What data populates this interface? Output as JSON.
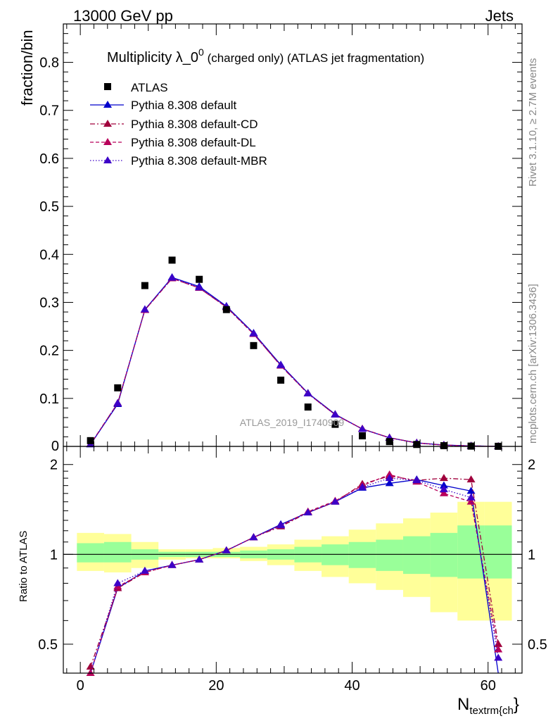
{
  "header": {
    "left": "13000 GeV pp",
    "right": "Jets"
  },
  "side_text": {
    "rivet": "Rivet 3.1.10, ≥ 2.7M events",
    "mcplots": "mcplots.cern.ch [arXiv:1306.3436]"
  },
  "watermark": "ATLAS_2019_I1740909",
  "colors": {
    "data": "#000000",
    "default": "#0000cc",
    "cd": "#a0003c",
    "dl": "#b8005a",
    "mbr": "#3d00c8",
    "band_yellow": "#ffff99",
    "band_green": "#99ff99"
  },
  "chart_data": [
    {
      "type": "scatter",
      "title": "Multiplicity λ_0^0 (charged only) (ATLAS jet fragmentation)",
      "title_parts": {
        "main": "Multiplicity λ_0",
        "sup": "0",
        "tail": " (charged only) (ATLAS jet fragmentation)"
      },
      "xlabel": "N_textrm{ch}",
      "xlabel_parts": {
        "main": "N",
        "sub": "textrm{ch",
        "tail": "}"
      },
      "ylabel": "fraction/bin",
      "xlim": [
        -2.5,
        65
      ],
      "ylim": [
        0,
        0.88
      ],
      "x_ticks": [
        0,
        20,
        40,
        60
      ],
      "y_ticks": [
        0.1,
        0.2,
        0.3,
        0.4,
        0.5,
        0.6,
        0.7,
        0.8
      ],
      "y_tick_labels": [
        "0.1",
        "0.2",
        "0.3",
        "0.4",
        "0.5",
        "0.6",
        "0.7",
        "0.8"
      ],
      "y_zero_label": "0",
      "legend_position": "top-left",
      "x": [
        1.5,
        5.5,
        9.5,
        13.5,
        17.5,
        21.5,
        25.5,
        29.5,
        33.5,
        37.5,
        41.5,
        45.5,
        49.5,
        53.5,
        57.5,
        61.5
      ],
      "series": [
        {
          "name": "ATLAS",
          "marker": "square",
          "values": [
            0.012,
            0.122,
            0.335,
            0.388,
            0.348,
            0.285,
            0.21,
            0.138,
            0.082,
            0.046,
            0.022,
            0.01,
            0.004,
            0.0015,
            0.0006,
            0.0002
          ]
        },
        {
          "name": "Pythia 8.308 default",
          "style": "solid",
          "values": [
            0.004,
            0.088,
            0.285,
            0.352,
            0.333,
            0.292,
            0.236,
            0.17,
            0.111,
            0.067,
            0.036,
            0.018,
            0.0075,
            0.0029,
            0.0011,
            7e-05
          ]
        },
        {
          "name": "Pythia 8.308 default-CD",
          "style": "dashdot",
          "values": [
            0.0046,
            0.09,
            0.284,
            0.35,
            0.33,
            0.29,
            0.234,
            0.168,
            0.11,
            0.066,
            0.0365,
            0.018,
            0.0072,
            0.0025,
            0.0009,
            8e-05
          ]
        },
        {
          "name": "Pythia 8.308 default-DL",
          "style": "dashed",
          "values": [
            0.0045,
            0.09,
            0.284,
            0.35,
            0.33,
            0.29,
            0.234,
            0.168,
            0.11,
            0.066,
            0.0365,
            0.018,
            0.0072,
            0.0027,
            0.001,
            0.0001
          ]
        },
        {
          "name": "Pythia 8.308 default-MBR",
          "style": "dotted",
          "values": [
            0.0042,
            0.09,
            0.285,
            0.351,
            0.331,
            0.291,
            0.235,
            0.169,
            0.11,
            0.066,
            0.0362,
            0.0178,
            0.007,
            0.0026,
            0.001,
            9e-05
          ]
        }
      ]
    },
    {
      "type": "line",
      "ylabel": "Ratio to ATLAS",
      "xlim": [
        -2.5,
        65
      ],
      "ylim": [
        0.4,
        2.3
      ],
      "log_y": true,
      "x_ticks": [
        0,
        20,
        40,
        60
      ],
      "y_ticks": [
        0.5,
        1,
        2
      ],
      "y_tick_labels": [
        "0.5",
        "1",
        "2"
      ],
      "x": [
        1.5,
        5.5,
        9.5,
        13.5,
        17.5,
        21.5,
        25.5,
        29.5,
        33.5,
        37.5,
        41.5,
        45.5,
        49.5,
        53.5,
        57.5,
        61.5
      ],
      "bin_edges": [
        -0.5,
        3.5,
        7.5,
        11.5,
        15.5,
        19.5,
        23.5,
        27.5,
        31.5,
        35.5,
        39.5,
        43.5,
        47.5,
        51.5,
        55.5,
        59.5,
        63.5
      ],
      "band_yellow": [
        [
          0.88,
          1.18
        ],
        [
          0.87,
          1.17
        ],
        [
          0.9,
          1.1
        ],
        [
          0.96,
          1.04
        ],
        [
          0.97,
          1.04
        ],
        [
          0.97,
          1.05
        ],
        [
          0.95,
          1.06
        ],
        [
          0.92,
          1.08
        ],
        [
          0.88,
          1.12
        ],
        [
          0.84,
          1.15
        ],
        [
          0.8,
          1.21
        ],
        [
          0.76,
          1.27
        ],
        [
          0.72,
          1.32
        ],
        [
          0.64,
          1.38
        ],
        [
          0.6,
          1.5
        ],
        [
          0.6,
          1.5
        ]
      ],
      "band_green": [
        [
          0.94,
          1.09
        ],
        [
          0.94,
          1.1
        ],
        [
          0.96,
          1.04
        ],
        [
          0.98,
          1.02
        ],
        [
          0.98,
          1.02
        ],
        [
          0.98,
          1.02
        ],
        [
          0.97,
          1.03
        ],
        [
          0.96,
          1.04
        ],
        [
          0.94,
          1.06
        ],
        [
          0.92,
          1.08
        ],
        [
          0.9,
          1.1
        ],
        [
          0.88,
          1.12
        ],
        [
          0.86,
          1.15
        ],
        [
          0.84,
          1.18
        ],
        [
          0.83,
          1.25
        ],
        [
          0.83,
          1.25
        ]
      ],
      "series": [
        {
          "name": "Pythia 8.308 default",
          "values": [
            0.36,
            0.77,
            0.88,
            0.92,
            0.96,
            1.03,
            1.14,
            1.26,
            1.38,
            1.5,
            1.67,
            1.73,
            1.78,
            1.7,
            1.63,
            0.33
          ]
        },
        {
          "name": "Pythia 8.308 default-CD",
          "values": [
            0.42,
            0.77,
            0.87,
            0.92,
            0.96,
            1.03,
            1.14,
            1.24,
            1.38,
            1.5,
            1.72,
            1.83,
            1.77,
            1.8,
            1.78,
            0.5
          ]
        },
        {
          "name": "Pythia 8.308 default-DL",
          "values": [
            0.4,
            0.78,
            0.87,
            0.92,
            0.96,
            1.03,
            1.14,
            1.25,
            1.39,
            1.51,
            1.7,
            1.85,
            1.75,
            1.6,
            1.5,
            0.48
          ]
        },
        {
          "name": "Pythia 8.308 default-MBR",
          "values": [
            0.38,
            0.8,
            0.88,
            0.92,
            0.96,
            1.03,
            1.14,
            1.25,
            1.38,
            1.5,
            1.68,
            1.8,
            1.77,
            1.65,
            1.55,
            0.45
          ]
        }
      ]
    }
  ]
}
